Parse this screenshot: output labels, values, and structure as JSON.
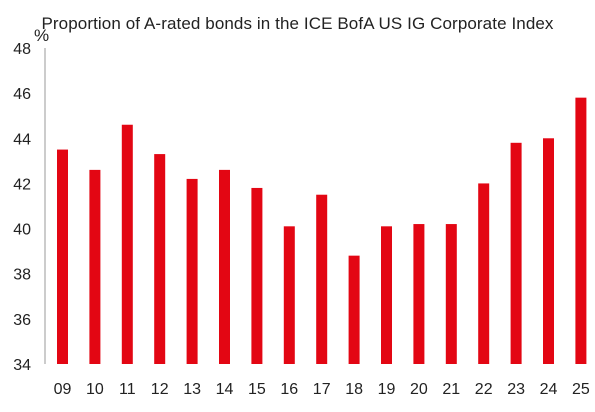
{
  "chart_data": {
    "type": "bar",
    "title": "Proportion of A-rated bonds in the ICE BofA US IG Corporate Index",
    "ylabel": "%",
    "xlabel": "",
    "categories": [
      "09",
      "10",
      "11",
      "12",
      "13",
      "14",
      "15",
      "16",
      "17",
      "18",
      "19",
      "20",
      "21",
      "22",
      "23",
      "24",
      "25"
    ],
    "values": [
      43.5,
      42.6,
      44.6,
      43.3,
      42.2,
      42.6,
      41.8,
      40.1,
      41.5,
      38.8,
      40.1,
      40.2,
      40.2,
      42.0,
      43.8,
      44.0,
      45.8
    ],
    "ylim": [
      34,
      48
    ],
    "yticks": [
      34,
      36,
      38,
      40,
      42,
      44,
      46,
      48
    ],
    "grid": false,
    "color": "#e30613"
  }
}
